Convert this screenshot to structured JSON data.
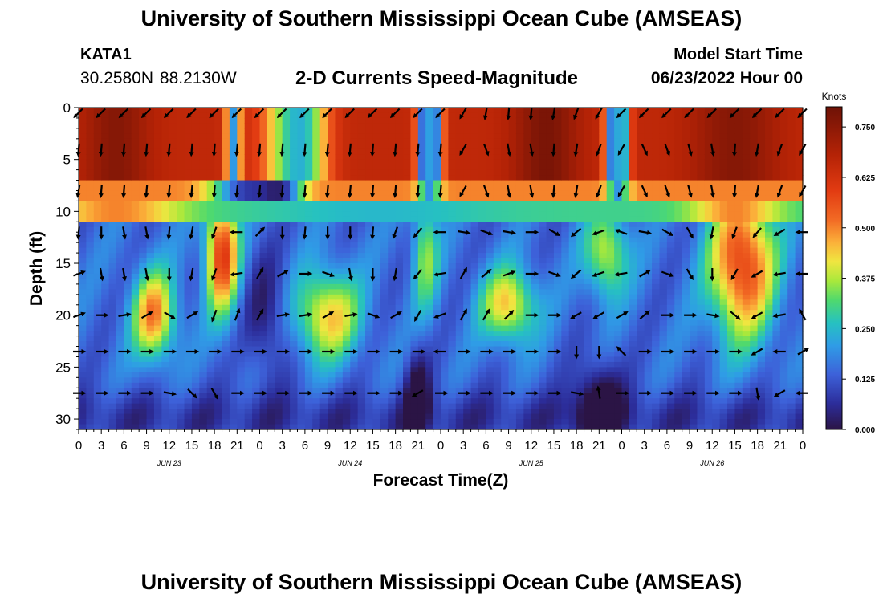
{
  "header": {
    "title": "University of Southern Mississippi Ocean Cube (AMSEAS)",
    "station": "KATA1",
    "coordinates": "30.2580N  88.2130W",
    "subtitle": "2-D Currents Speed-Magnitude",
    "model_start_label": "Model Start Time",
    "model_start_value": "06/23/2022 Hour 00"
  },
  "footer": {
    "title": "University of Southern Mississippi Ocean Cube (AMSEAS)"
  },
  "chart_data": {
    "type": "heatmap",
    "title": "2-D Currents Speed-Magnitude",
    "xlabel": "Forecast Time(Z)",
    "ylabel": "Depth (ft)",
    "x_range_hours": [
      0,
      96
    ],
    "y_range_ft": [
      0,
      31
    ],
    "x_tick_labels": [
      "0",
      "3",
      "6",
      "9",
      "12",
      "15",
      "18",
      "21",
      "0",
      "3",
      "6",
      "9",
      "12",
      "15",
      "18",
      "21",
      "0",
      "3",
      "6",
      "9",
      "12",
      "15",
      "18",
      "21",
      "0",
      "3",
      "6",
      "9",
      "12",
      "15",
      "18",
      "21",
      "0"
    ],
    "date_labels": [
      {
        "text": "JUN 23",
        "hour": 12
      },
      {
        "text": "JUN 24",
        "hour": 36
      },
      {
        "text": "JUN 25",
        "hour": 60
      },
      {
        "text": "JUN 26",
        "hour": 84
      }
    ],
    "y_ticks": [
      0,
      5,
      10,
      15,
      20,
      25,
      30
    ],
    "colorbar": {
      "unit": "Knots",
      "range": [
        0,
        0.8
      ],
      "ticks": [
        {
          "value": 0.0,
          "label": "0.000"
        },
        {
          "value": 0.125,
          "label": "0.125"
        },
        {
          "value": 0.25,
          "label": "0.250"
        },
        {
          "value": 0.375,
          "label": "0.375"
        },
        {
          "value": 0.5,
          "label": "0.500"
        },
        {
          "value": 0.625,
          "label": "0.625"
        },
        {
          "value": 0.75,
          "label": "0.750"
        }
      ]
    },
    "vector_depths_ft": [
      0.5,
      4,
      8,
      12,
      16,
      20,
      23.5,
      27.5
    ],
    "vector_times_h": [
      0,
      3,
      6,
      9,
      12,
      15,
      18,
      21,
      24,
      27,
      30,
      33,
      36,
      39,
      42,
      45,
      48,
      51,
      54,
      57,
      60,
      63,
      66,
      69,
      72,
      75,
      78,
      81,
      84,
      87,
      90,
      93,
      96
    ],
    "vector_angles_deg": [
      [
        135,
        135,
        135,
        135,
        135,
        135,
        135,
        135,
        135,
        135,
        135,
        135,
        135,
        135,
        135,
        135,
        135,
        120,
        100,
        95,
        95,
        100,
        110,
        120,
        135,
        135,
        135,
        135,
        135,
        135,
        135,
        135,
        135
      ],
      [
        95,
        95,
        95,
        95,
        95,
        95,
        95,
        95,
        95,
        95,
        95,
        95,
        95,
        95,
        95,
        95,
        95,
        120,
        70,
        80,
        80,
        95,
        100,
        110,
        120,
        65,
        70,
        75,
        80,
        95,
        100,
        110,
        120
      ],
      [
        100,
        95,
        95,
        95,
        95,
        95,
        95,
        95,
        95,
        95,
        95,
        95,
        95,
        95,
        95,
        95,
        95,
        120,
        70,
        80,
        80,
        95,
        100,
        110,
        120,
        65,
        70,
        75,
        80,
        95,
        100,
        110,
        120
      ],
      [
        95,
        90,
        80,
        80,
        95,
        100,
        110,
        180,
        -45,
        90,
        95,
        90,
        90,
        95,
        110,
        130,
        180,
        10,
        20,
        10,
        0,
        30,
        140,
        160,
        200,
        10,
        30,
        60,
        100,
        110,
        130,
        150,
        180
      ],
      [
        -20,
        80,
        80,
        80,
        90,
        100,
        110,
        170,
        -60,
        -30,
        0,
        20,
        80,
        90,
        100,
        130,
        170,
        -60,
        -40,
        -20,
        0,
        20,
        140,
        160,
        170,
        -30,
        20,
        60,
        90,
        120,
        150,
        170,
        180
      ],
      [
        -20,
        0,
        -10,
        -30,
        30,
        -30,
        110,
        -70,
        -60,
        -10,
        -10,
        -30,
        -10,
        20,
        -30,
        120,
        160,
        -60,
        -60,
        -45,
        0,
        0,
        150,
        150,
        -30,
        -40,
        0,
        0,
        10,
        40,
        150,
        170,
        -120
      ],
      [
        0,
        0,
        0,
        0,
        0,
        0,
        0,
        0,
        0,
        0,
        0,
        0,
        0,
        0,
        0,
        0,
        180,
        0,
        0,
        0,
        0,
        0,
        90,
        90,
        -135,
        0,
        0,
        0,
        0,
        0,
        150,
        180,
        -30
      ],
      [
        0,
        0,
        0,
        0,
        10,
        45,
        60,
        0,
        0,
        0,
        0,
        0,
        0,
        0,
        0,
        150,
        0,
        0,
        0,
        0,
        0,
        0,
        10,
        -100,
        0,
        0,
        0,
        0,
        0,
        0,
        80,
        150,
        180
      ]
    ]
  }
}
